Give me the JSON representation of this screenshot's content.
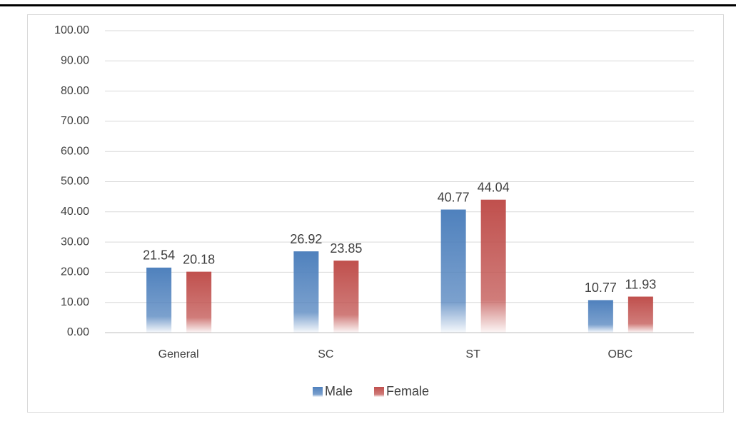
{
  "chart_data": {
    "type": "bar",
    "categories": [
      "General",
      "SC",
      "ST",
      "OBC"
    ],
    "series": [
      {
        "name": "Male",
        "color": "#4f81bd",
        "values": [
          21.54,
          26.92,
          40.77,
          10.77
        ]
      },
      {
        "name": "Female",
        "color": "#c0504d",
        "values": [
          20.18,
          23.85,
          44.04,
          11.93
        ]
      }
    ],
    "ylim": [
      0,
      100
    ],
    "yticks": [
      {
        "value": 0,
        "label": "0.00"
      },
      {
        "value": 10,
        "label": "10.00"
      },
      {
        "value": 20,
        "label": "20.00"
      },
      {
        "value": 30,
        "label": "30.00"
      },
      {
        "value": 40,
        "label": "40.00"
      },
      {
        "value": 50,
        "label": "50.00"
      },
      {
        "value": 60,
        "label": "60.00"
      },
      {
        "value": 70,
        "label": "70.00"
      },
      {
        "value": 80,
        "label": "80.00"
      },
      {
        "value": 90,
        "label": "90.00"
      },
      {
        "value": 100,
        "label": "100.00"
      }
    ],
    "grid": true,
    "legend": "bottom"
  }
}
